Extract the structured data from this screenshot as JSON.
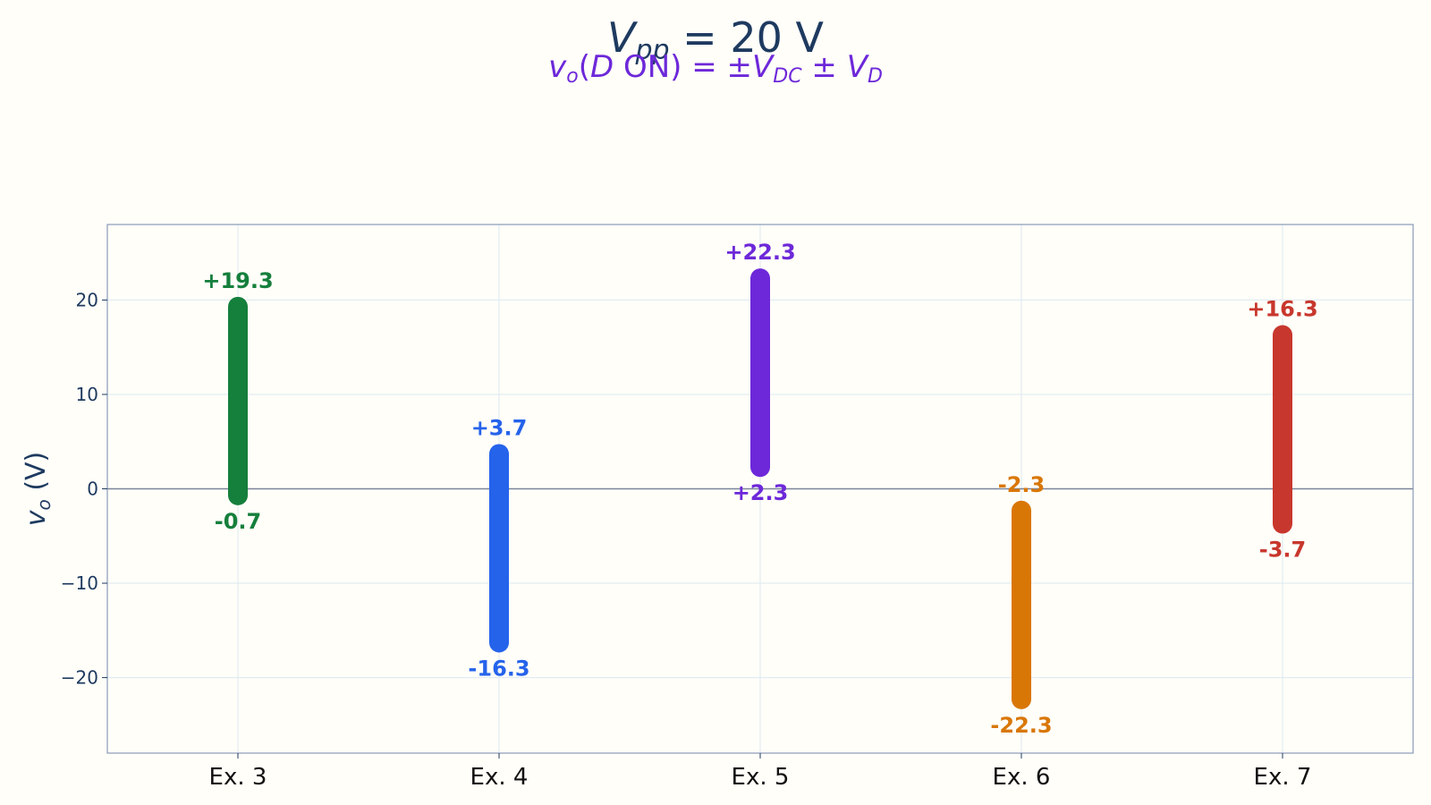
{
  "chart_data": {
    "type": "range-bar",
    "title": "V_pp = 20 V",
    "subtitle": "v_o(D ON) = ±V_DC ± V_D",
    "ylabel": "v_o (V)",
    "xlabel": "",
    "ylim": [
      -28,
      28
    ],
    "yticks": [
      20,
      10,
      0,
      -10,
      -20
    ],
    "ytick_labels": [
      "20",
      "10",
      "0",
      "−10",
      "−20"
    ],
    "grid": true,
    "zero_line": true,
    "categories": [
      "Ex. 3",
      "Ex. 4",
      "Ex. 5",
      "Ex. 6",
      "Ex. 7"
    ],
    "ranges": [
      {
        "category": "Ex. 3",
        "low": -0.7,
        "high": 19.3,
        "low_label": "-0.7",
        "high_label": "+19.3",
        "color": "#157f3c"
      },
      {
        "category": "Ex. 4",
        "low": -16.3,
        "high": 3.7,
        "low_label": "-16.3",
        "high_label": "+3.7",
        "color": "#2563eb"
      },
      {
        "category": "Ex. 5",
        "low": 2.3,
        "high": 22.3,
        "low_label": "+2.3",
        "high_label": "+22.3",
        "color": "#6d28d9"
      },
      {
        "category": "Ex. 6",
        "low": -22.3,
        "high": -2.3,
        "low_label": "-22.3",
        "high_label": "-2.3",
        "color": "#d97706"
      },
      {
        "category": "Ex. 7",
        "low": -3.7,
        "high": 16.3,
        "low_label": "-3.7",
        "high_label": "+16.3",
        "color": "#c8372d"
      }
    ],
    "colors": {
      "title": "#1e3a5f",
      "subtitle": "#6d28d9",
      "axis_text": "#1e3a5f",
      "frame": "#8a9bb8",
      "grid": "#dce8f0",
      "zero_line": "#7a8499",
      "background": "#fffef9"
    }
  }
}
